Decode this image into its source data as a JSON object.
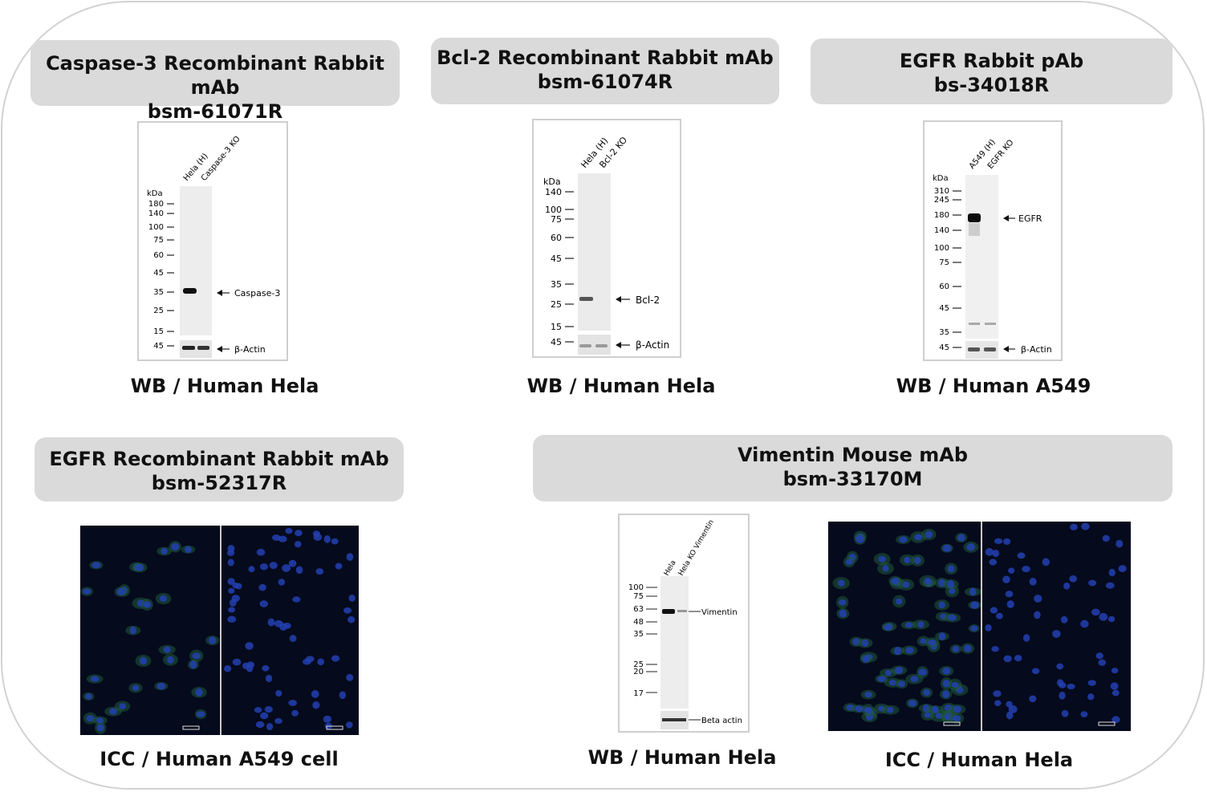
{
  "panels": [
    {
      "title_line1": "Caspase-3 Recombinant Rabbit mAb",
      "title_line2": "bsm-61071R",
      "caption": "WB / Human Hela"
    },
    {
      "title_line1": "Bcl-2 Recombinant Rabbit mAb",
      "title_line2": "bsm-61074R",
      "caption": "WB / Human Hela"
    },
    {
      "title_line1": "EGFR Rabbit pAb",
      "title_line2": "bs-34018R",
      "caption": "WB / Human A549"
    },
    {
      "title_line1": "EGFR Recombinant Rabbit mAb",
      "title_line2": "bsm-52317R",
      "caption": "ICC / Human A549 cell"
    },
    {
      "title_line1": "Vimentin Mouse mAb",
      "title_line2": "bsm-33170M",
      "caption": "WB / Human Hela",
      "caption2": "ICC / Human Hela"
    }
  ],
  "blots": {
    "caspase": {
      "lanes": [
        "Hela (H)",
        "Caspase-3 KO"
      ],
      "kda": "kDa",
      "markers": [
        "180",
        "140",
        "100",
        "75",
        "60",
        "45",
        "35",
        "25",
        "15"
      ],
      "actin_marker": "45",
      "target": "Caspase-3",
      "loading": "β-Actin"
    },
    "bcl2": {
      "lanes": [
        "Hela (H)",
        "Bcl-2 KO"
      ],
      "kda": "kDa",
      "markers": [
        "140",
        "100",
        "75",
        "60",
        "45",
        "35",
        "25",
        "15"
      ],
      "actin_marker": "45",
      "target": "Bcl-2",
      "loading": "β-Actin"
    },
    "egfr": {
      "lanes": [
        "A549 (H)",
        "EGFR KO"
      ],
      "kda": "kDa",
      "markers": [
        "310",
        "245",
        "180",
        "140",
        "100",
        "75",
        "60",
        "45",
        "35"
      ],
      "actin_marker": "45",
      "target": "EGFR",
      "loading": "β-Actin"
    },
    "vimentin": {
      "lanes": [
        "Hela",
        "Hela KO Vimentin"
      ],
      "markers": [
        "100",
        "75",
        "63",
        "48",
        "35",
        "25",
        "20",
        "17"
      ],
      "target": "Vimentin",
      "loading": "Beta actin"
    }
  }
}
